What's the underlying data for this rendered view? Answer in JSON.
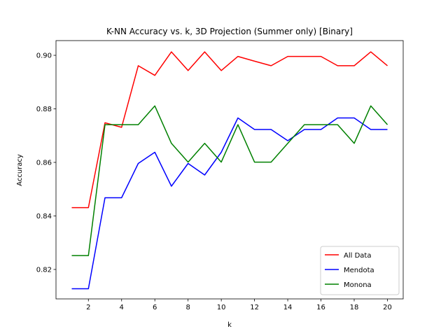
{
  "chart_data": {
    "type": "line",
    "title": "K-NN Accuracy vs. k, 3D Projection (Summer only) [Binary]",
    "xlabel": "k",
    "ylabel": "Accuracy",
    "x": [
      1,
      2,
      3,
      4,
      5,
      6,
      7,
      8,
      9,
      10,
      11,
      12,
      13,
      14,
      15,
      16,
      17,
      18,
      19,
      20
    ],
    "xlim": [
      0.05,
      20.95
    ],
    "ylim": [
      0.809,
      0.9055
    ],
    "xticks": [
      2,
      4,
      6,
      8,
      10,
      12,
      14,
      16,
      18,
      20
    ],
    "xtick_labels": [
      "2",
      "4",
      "6",
      "8",
      "10",
      "12",
      "14",
      "16",
      "18",
      "20"
    ],
    "yticks": [
      0.82,
      0.84,
      0.86,
      0.88,
      0.9
    ],
    "ytick_labels": [
      "0.82",
      "0.84",
      "0.86",
      "0.88",
      "0.90"
    ],
    "grid": false,
    "legend_position": "lower-right",
    "series": [
      {
        "name": "All Data",
        "color": "#ff0000",
        "values": [
          0.8431,
          0.8431,
          0.8748,
          0.8731,
          0.8961,
          0.8925,
          0.9013,
          0.8943,
          0.9013,
          0.8943,
          0.8996,
          0.8978,
          0.8961,
          0.8996,
          0.8996,
          0.8996,
          0.8961,
          0.8961,
          0.9013,
          0.8961
        ]
      },
      {
        "name": "Mendota",
        "color": "#0000ff",
        "values": [
          0.8128,
          0.8128,
          0.8468,
          0.8468,
          0.8596,
          0.8638,
          0.8511,
          0.8596,
          0.8553,
          0.8638,
          0.8766,
          0.8723,
          0.8723,
          0.8681,
          0.8723,
          0.8723,
          0.8766,
          0.8766,
          0.8723,
          0.8723
        ]
      },
      {
        "name": "Monona",
        "color": "#008000",
        "values": [
          0.8252,
          0.8252,
          0.8741,
          0.8741,
          0.8741,
          0.8811,
          0.8671,
          0.8601,
          0.8671,
          0.8601,
          0.8741,
          0.8601,
          0.8601,
          0.8671,
          0.8741,
          0.8741,
          0.8741,
          0.8671,
          0.8811,
          0.8741
        ]
      }
    ]
  }
}
